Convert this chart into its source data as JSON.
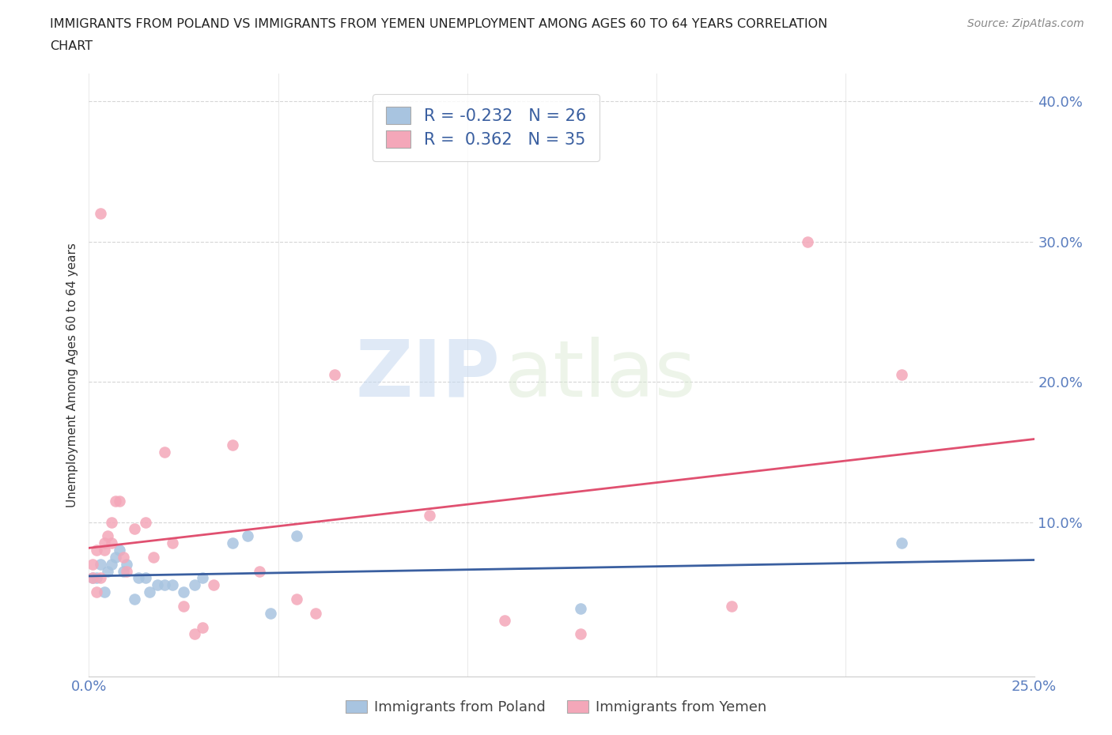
{
  "title_line1": "IMMIGRANTS FROM POLAND VS IMMIGRANTS FROM YEMEN UNEMPLOYMENT AMONG AGES 60 TO 64 YEARS CORRELATION",
  "title_line2": "CHART",
  "source": "Source: ZipAtlas.com",
  "ylabel": "Unemployment Among Ages 60 to 64 years",
  "xlim": [
    0.0,
    0.25
  ],
  "ylim": [
    -0.01,
    0.42
  ],
  "xticks": [
    0.0,
    0.05,
    0.1,
    0.15,
    0.2,
    0.25
  ],
  "yticks": [
    0.1,
    0.2,
    0.3,
    0.4
  ],
  "ytick_labels": [
    "10.0%",
    "20.0%",
    "30.0%",
    "40.0%"
  ],
  "xtick_labels": [
    "0.0%",
    "",
    "",
    "",
    "",
    "25.0%"
  ],
  "poland_color": "#a8c4e0",
  "yemen_color": "#f4a7b9",
  "poland_line_color": "#3a5fa0",
  "yemen_line_color": "#e05070",
  "poland_R": -0.232,
  "poland_N": 26,
  "yemen_R": 0.362,
  "yemen_N": 35,
  "watermark_zip": "ZIP",
  "watermark_atlas": "atlas",
  "legend_label_poland": "Immigrants from Poland",
  "legend_label_yemen": "Immigrants from Yemen",
  "poland_x": [
    0.001,
    0.002,
    0.003,
    0.004,
    0.005,
    0.006,
    0.007,
    0.008,
    0.009,
    0.01,
    0.012,
    0.013,
    0.015,
    0.016,
    0.018,
    0.02,
    0.022,
    0.025,
    0.028,
    0.03,
    0.038,
    0.042,
    0.048,
    0.055,
    0.13,
    0.215
  ],
  "poland_y": [
    0.06,
    0.06,
    0.07,
    0.05,
    0.065,
    0.07,
    0.075,
    0.08,
    0.065,
    0.07,
    0.045,
    0.06,
    0.06,
    0.05,
    0.055,
    0.055,
    0.055,
    0.05,
    0.055,
    0.06,
    0.085,
    0.09,
    0.035,
    0.09,
    0.038,
    0.085
  ],
  "yemen_x": [
    0.001,
    0.001,
    0.002,
    0.002,
    0.003,
    0.003,
    0.004,
    0.004,
    0.005,
    0.006,
    0.006,
    0.007,
    0.008,
    0.009,
    0.01,
    0.012,
    0.015,
    0.017,
    0.02,
    0.022,
    0.025,
    0.028,
    0.03,
    0.033,
    0.038,
    0.045,
    0.055,
    0.06,
    0.065,
    0.09,
    0.11,
    0.13,
    0.17,
    0.19,
    0.215
  ],
  "yemen_y": [
    0.07,
    0.06,
    0.08,
    0.05,
    0.32,
    0.06,
    0.08,
    0.085,
    0.09,
    0.085,
    0.1,
    0.115,
    0.115,
    0.075,
    0.065,
    0.095,
    0.1,
    0.075,
    0.15,
    0.085,
    0.04,
    0.02,
    0.025,
    0.055,
    0.155,
    0.065,
    0.045,
    0.035,
    0.205,
    0.105,
    0.03,
    0.02,
    0.04,
    0.3,
    0.205
  ]
}
